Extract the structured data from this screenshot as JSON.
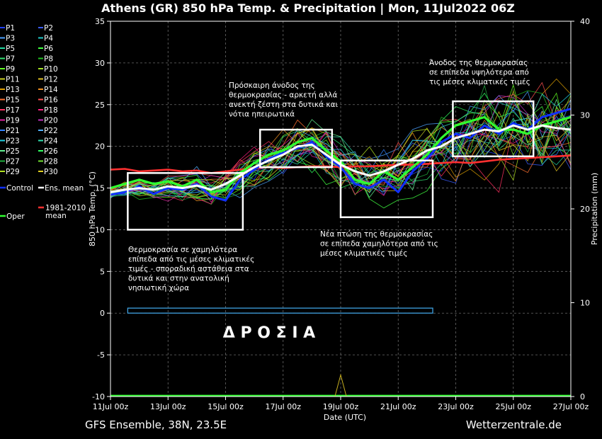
{
  "chart_data": {
    "type": "line",
    "title": "Athens  (GR)  850 hPa Temp. & Precipitation | Mon, 11Jul2022 06Z",
    "ylabel": "850 hPa Temp. (°C)",
    "y2label": "Precipitation (mm)",
    "xlabel": "Date (UTC)",
    "footer_left": "GFS Ensemble, 38N, 23.5E",
    "footer_right": "Wetterzentrale.de",
    "ylim": [
      -10,
      35
    ],
    "y2lim": [
      0,
      40
    ],
    "xlim": [
      0,
      16
    ],
    "yticks": [
      "-10",
      "-5",
      "0",
      "5",
      "10",
      "15",
      "20",
      "25",
      "30",
      "35"
    ],
    "y2ticks": [
      "0",
      "10",
      "20",
      "30",
      "40"
    ],
    "xticks": [
      {
        "x": 0,
        "label": "11Jul 00z"
      },
      {
        "x": 2,
        "label": "13Jul 00z"
      },
      {
        "x": 4,
        "label": "15Jul 00z"
      },
      {
        "x": 6,
        "label": "17Jul 00z"
      },
      {
        "x": 8,
        "label": "19Jul 00z"
      },
      {
        "x": 10,
        "label": "21Jul 00z"
      },
      {
        "x": 12,
        "label": "23Jul 00z"
      },
      {
        "x": 14,
        "label": "25Jul 00z"
      },
      {
        "x": 16,
        "label": "27Jul 00z"
      }
    ],
    "grid": true,
    "legend_position": "left",
    "legend": [
      {
        "label": "P1",
        "color": "#1f3fff"
      },
      {
        "label": "P2",
        "color": "#3a5cff"
      },
      {
        "label": "P3",
        "color": "#4aa0ff"
      },
      {
        "label": "P4",
        "color": "#1ec8c8"
      },
      {
        "label": "P5",
        "color": "#20d8a0"
      },
      {
        "label": "P6",
        "color": "#40ff40"
      },
      {
        "label": "P7",
        "color": "#30e070"
      },
      {
        "label": "P8",
        "color": "#20c020"
      },
      {
        "label": "P9",
        "color": "#60ff20"
      },
      {
        "label": "P10",
        "color": "#a0e020"
      },
      {
        "label": "P11",
        "color": "#c8d020"
      },
      {
        "label": "P12",
        "color": "#e0c020"
      },
      {
        "label": "P13",
        "color": "#e0a000"
      },
      {
        "label": "P14",
        "color": "#f09020"
      },
      {
        "label": "P15",
        "color": "#ff7030"
      },
      {
        "label": "P16",
        "color": "#ff5050"
      },
      {
        "label": "P17",
        "color": "#ff3060"
      },
      {
        "label": "P18",
        "color": "#ff2080"
      },
      {
        "label": "P19",
        "color": "#e020a0"
      },
      {
        "label": "P20",
        "color": "#c030c0"
      },
      {
        "label": "P21",
        "color": "#3080ff"
      },
      {
        "label": "P22",
        "color": "#50b0ff"
      },
      {
        "label": "P23",
        "color": "#20d0e0"
      },
      {
        "label": "P24",
        "color": "#30e0b0"
      },
      {
        "label": "P25",
        "color": "#60f090"
      },
      {
        "label": "P26",
        "color": "#30ff60"
      },
      {
        "label": "P27",
        "color": "#20b040"
      },
      {
        "label": "P28",
        "color": "#70e030"
      },
      {
        "label": "P29",
        "color": "#b0e020"
      },
      {
        "label": "P30",
        "color": "#e0d020"
      },
      {
        "label": "Control",
        "color": "#1030ff"
      },
      {
        "label": "Ens. mean",
        "color": "#ffffff"
      },
      {
        "label": "Oper",
        "color": "#30ff30"
      },
      {
        "label": "1981-2010\nmean",
        "color": "#ff3030"
      }
    ],
    "series": [
      {
        "name": "Ens. mean",
        "color": "#ffffff",
        "x": [
          0,
          0.5,
          1,
          1.5,
          2,
          2.5,
          3,
          3.5,
          4,
          4.5,
          5,
          5.5,
          6,
          6.5,
          7,
          7.5,
          8,
          8.5,
          9,
          9.5,
          10,
          10.5,
          11,
          11.5,
          12,
          12.5,
          13,
          13.5,
          14,
          14.5,
          15,
          15.5,
          16
        ],
        "y": [
          14.5,
          14.8,
          15.0,
          14.8,
          15.2,
          15.0,
          15.3,
          14.8,
          15.5,
          16.5,
          17.5,
          18.3,
          19.0,
          20.0,
          20.2,
          19.0,
          17.8,
          17.0,
          16.5,
          17.0,
          17.8,
          18.5,
          19.5,
          20.0,
          21.0,
          21.5,
          22.0,
          21.8,
          22.5,
          22.0,
          22.5,
          22.2,
          22.0
        ]
      },
      {
        "name": "Control",
        "color": "#1030ff",
        "x": [
          0,
          0.5,
          1,
          1.5,
          2,
          2.5,
          3,
          3.5,
          4,
          4.5,
          5,
          5.5,
          6,
          6.5,
          7,
          7.5,
          8,
          8.5,
          9,
          9.5,
          10,
          10.5,
          11,
          11.5,
          12,
          12.5,
          13,
          13.5,
          14,
          14.5,
          15,
          15.5,
          16
        ],
        "y": [
          14.2,
          14.5,
          15.2,
          14.3,
          15.0,
          14.8,
          15.5,
          14.0,
          13.5,
          16.0,
          17.2,
          18.5,
          19.2,
          19.8,
          20.5,
          18.8,
          17.5,
          15.5,
          15.0,
          16.0,
          14.5,
          17.0,
          18.5,
          20.5,
          21.5,
          21.0,
          22.5,
          21.5,
          22.8,
          22.0,
          23.5,
          24.0,
          24.5
        ]
      },
      {
        "name": "Oper",
        "color": "#30ff30",
        "x": [
          0,
          0.5,
          1,
          1.5,
          2,
          2.5,
          3,
          3.5,
          4,
          4.5,
          5,
          5.5,
          6,
          6.5,
          7,
          7.5,
          8,
          8.5,
          9,
          9.5,
          10,
          10.5,
          11,
          11.5,
          12,
          12.5,
          13,
          13.5,
          14,
          14.5,
          15,
          15.5,
          16
        ],
        "y": [
          15.0,
          15.5,
          16.0,
          15.5,
          15.8,
          15.2,
          16.0,
          14.5,
          14.8,
          16.8,
          18.0,
          19.0,
          19.5,
          20.5,
          21.0,
          19.5,
          18.2,
          16.0,
          15.5,
          17.0,
          16.0,
          17.5,
          19.0,
          21.0,
          22.5,
          23.0,
          23.5,
          22.0,
          22.0,
          21.5,
          22.5,
          23.0,
          23.5
        ]
      },
      {
        "name": "1981-2010\nmean",
        "color": "#ff3030",
        "x": [
          0,
          0.5,
          1,
          1.5,
          2,
          2.5,
          3,
          3.5,
          4,
          4.5,
          5,
          5.5,
          6,
          6.5,
          7,
          7.5,
          8,
          8.5,
          9,
          9.5,
          10,
          10.5,
          11,
          11.5,
          12,
          12.5,
          13,
          13.5,
          14,
          14.5,
          15,
          15.5,
          16
        ],
        "y": [
          17.2,
          17.3,
          17.0,
          17.1,
          17.2,
          17.0,
          17.1,
          16.8,
          17.0,
          17.2,
          17.4,
          17.5,
          17.4,
          17.5,
          17.6,
          17.6,
          17.5,
          17.6,
          17.6,
          17.7,
          17.8,
          17.8,
          17.9,
          18.0,
          18.1,
          18.0,
          18.2,
          18.4,
          18.5,
          18.6,
          18.7,
          18.8,
          18.9
        ]
      }
    ],
    "annotations": [
      {
        "text": "Θερμοκρασία σε χαμηλότερα\nεπίπεδα από τις μέσες κλιματικές\nτιμές - σποραδική αστάθεια στα\nδυτικά και στην ανατολική\nνησιωτική χώρα",
        "box_x": [
          0.6,
          4.6
        ],
        "box_y": [
          10.0,
          16.8
        ]
      },
      {
        "text": "Πρόσκαιρη άνοδος της\nθερμοκρασίας - αρκετή αλλά\nανεκτή ζέστη στα δυτικά και\nνότια ηπειρωτικά",
        "box_x": [
          5.2,
          7.7
        ],
        "box_y": [
          17.5,
          22.0
        ]
      },
      {
        "text": "Νέα πτώση της θερμοκρασίας\nσε επίπεδα χαμηλότερα από τις\nμέσες κλιματικές τιμές",
        "box_x": [
          8.0,
          11.2
        ],
        "box_y": [
          11.5,
          18.3
        ]
      },
      {
        "text": "Άνοδος της θερμοκρασίας\nσε επίπεδα υψηλότερα από\nτις μέσες κλιματικές τιμές",
        "box_x": [
          11.9,
          14.7
        ],
        "box_y": [
          18.8,
          25.4
        ]
      }
    ],
    "drought_band": {
      "label": "Δ  Ρ  Ο  Σ  Ι  Α",
      "x": [
        0.6,
        11.2
      ],
      "y": [
        0.0,
        0.6
      ],
      "color": "#3fa0e0"
    }
  }
}
